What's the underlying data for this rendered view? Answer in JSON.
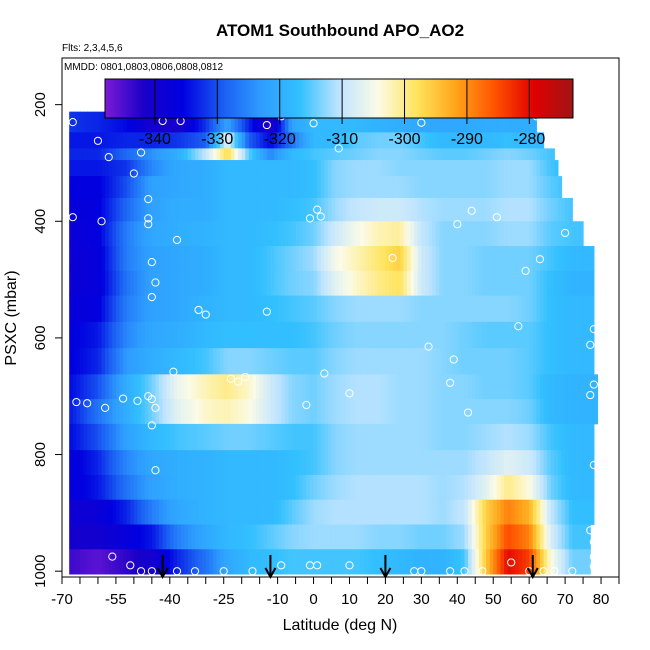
{
  "chart_data": {
    "type": "heatmap",
    "title": "ATOM1 Southbound APO_AO2",
    "subtitle_flights": "Flts: 2,3,4,5,6",
    "subtitle_dates": "MMDD: 0801,0803,0806,0808,0812",
    "xlabel": "Latitude (deg N)",
    "ylabel": "PSXC (mbar)",
    "xlim": [
      -70,
      85
    ],
    "ylim": [
      1010,
      120
    ],
    "y_reversed": true,
    "x_ticks": [
      -70,
      -55,
      -40,
      -25,
      -10,
      0,
      10,
      20,
      30,
      40,
      50,
      60,
      70,
      80
    ],
    "x_minor_ticks": [
      -65,
      -60,
      -50,
      -45,
      -35,
      -30,
      -20,
      -15,
      -5,
      5,
      15,
      25,
      35,
      45,
      55,
      65,
      75,
      85
    ],
    "y_ticks": [
      200,
      400,
      600,
      800,
      1000
    ],
    "colorbar": {
      "ticks": [
        -340,
        -330,
        -320,
        -310,
        -300,
        -290,
        -280
      ],
      "range": [
        -348,
        -273
      ],
      "colors": [
        "#7a1bd6",
        "#1a00c8",
        "#0000e0",
        "#1a5cf2",
        "#2e9cff",
        "#33c0ff",
        "#bfe4ff",
        "#fbfbe6",
        "#ffe45c",
        "#ffa41a",
        "#ff5200",
        "#e00000",
        "#a01515"
      ]
    },
    "grid": false,
    "legend": "colorbar-top",
    "pressure_levels": [
      230,
      265,
      285,
      305,
      340,
      380,
      420,
      465,
      505,
      550,
      595,
      640,
      685,
      725,
      770,
      815,
      855,
      900,
      940,
      985
    ],
    "profile_breaks": {
      "x": [
        -68,
        -60,
        -52,
        -45,
        -38,
        -30,
        -24,
        -18,
        -12,
        -6,
        0,
        6,
        12,
        18,
        24,
        30,
        36,
        42,
        48,
        54,
        60,
        66,
        72
      ],
      "values": [
        [
          -332,
          -333,
          -335,
          -340,
          -341,
          -332,
          -322,
          -333,
          -343,
          -322,
          -318,
          -318,
          -318,
          -319,
          -320,
          -321,
          -321,
          -321,
          -320,
          -320,
          -320,
          -321,
          -321
        ],
        [
          -334,
          -334,
          -333,
          -333,
          -332,
          -329,
          -307,
          -329,
          -335,
          -327,
          -318,
          -318,
          -315,
          -314,
          -314,
          -316,
          -318,
          -318,
          -318,
          -317,
          -318,
          -318,
          -318
        ],
        [
          -333,
          -333,
          -328,
          -324,
          -320,
          -310,
          -297,
          -315,
          -325,
          -318,
          -316,
          -315,
          -314,
          -313,
          -313,
          -314,
          -315,
          -315,
          -314,
          -313,
          -314,
          -316,
          -318
        ],
        [
          -334,
          -334,
          -332,
          -325,
          -321,
          -320,
          -318,
          -318,
          -318,
          -318,
          -317,
          -313,
          -312,
          -312,
          -313,
          -313,
          -313,
          -313,
          -313,
          -312,
          -312,
          -316,
          -318
        ],
        [
          -336,
          -336,
          -330,
          -322,
          -321,
          -320,
          -318,
          -318,
          -318,
          -318,
          -317,
          -313,
          -312,
          -312,
          -312,
          -313,
          -313,
          -313,
          -313,
          -312,
          -312,
          -315,
          -317
        ],
        [
          -337,
          -336,
          -328,
          -322,
          -320,
          -320,
          -318,
          -318,
          -318,
          -317,
          -316,
          -312,
          -310,
          -309,
          -309,
          -311,
          -312,
          -312,
          -312,
          -311,
          -311,
          -314,
          -316
        ],
        [
          -338,
          -336,
          -326,
          -321,
          -320,
          -319,
          -318,
          -318,
          -317,
          -316,
          -314,
          -309,
          -305,
          -302,
          -301,
          -310,
          -313,
          -313,
          -313,
          -312,
          -312,
          -315,
          -316
        ],
        [
          -338,
          -337,
          -326,
          -322,
          -321,
          -320,
          -318,
          -318,
          -316,
          -314,
          -312,
          -305,
          -302,
          -299,
          -296,
          -309,
          -313,
          -313,
          -314,
          -314,
          -314,
          -316,
          -318
        ],
        [
          -338,
          -337,
          -327,
          -322,
          -321,
          -320,
          -318,
          -318,
          -316,
          -314,
          -313,
          -307,
          -303,
          -300,
          -298,
          -309,
          -313,
          -313,
          -314,
          -314,
          -314,
          -317,
          -319
        ],
        [
          -337,
          -336,
          -326,
          -322,
          -321,
          -319,
          -318,
          -318,
          -317,
          -316,
          -315,
          -313,
          -312,
          -312,
          -312,
          -313,
          -313,
          -313,
          -313,
          -313,
          -314,
          -317,
          -318
        ],
        [
          -336,
          -334,
          -325,
          -321,
          -320,
          -318,
          -317,
          -317,
          -317,
          -317,
          -316,
          -314,
          -313,
          -313,
          -313,
          -313,
          -313,
          -314,
          -315,
          -315,
          -315,
          -317,
          -318
        ],
        [
          -336,
          -333,
          -323,
          -320,
          -318,
          -316,
          -313,
          -313,
          -314,
          -315,
          -315,
          -313,
          -312,
          -312,
          -312,
          -312,
          -313,
          -314,
          -314,
          -314,
          -315,
          -317,
          -318
        ],
        [
          -335,
          -330,
          -320,
          -314,
          -306,
          -302,
          -300,
          -303,
          -309,
          -313,
          -314,
          -312,
          -311,
          -311,
          -312,
          -312,
          -313,
          -313,
          -314,
          -314,
          -315,
          -318,
          -319
        ],
        [
          -334,
          -327,
          -320,
          -314,
          -307,
          -303,
          -302,
          -304,
          -309,
          -313,
          -314,
          -312,
          -311,
          -311,
          -312,
          -312,
          -313,
          -313,
          -313,
          -313,
          -314,
          -318,
          -319
        ],
        [
          -335,
          -330,
          -322,
          -318,
          -316,
          -315,
          -314,
          -314,
          -315,
          -316,
          -316,
          -313,
          -312,
          -312,
          -312,
          -312,
          -313,
          -313,
          -312,
          -311,
          -312,
          -316,
          -318
        ],
        [
          -337,
          -333,
          -325,
          -321,
          -320,
          -319,
          -318,
          -318,
          -318,
          -317,
          -316,
          -313,
          -312,
          -312,
          -312,
          -312,
          -312,
          -312,
          -310,
          -307,
          -309,
          -315,
          -318
        ],
        [
          -337,
          -334,
          -327,
          -322,
          -320,
          -319,
          -318,
          -318,
          -318,
          -317,
          -314,
          -312,
          -311,
          -311,
          -311,
          -311,
          -312,
          -311,
          -307,
          -300,
          -304,
          -314,
          -318
        ],
        [
          -339,
          -338,
          -333,
          -326,
          -321,
          -319,
          -318,
          -318,
          -318,
          -315,
          -312,
          -311,
          -311,
          -311,
          -311,
          -311,
          -312,
          -310,
          -296,
          -289,
          -293,
          -310,
          -317
        ],
        [
          -340,
          -340,
          -337,
          -334,
          -326,
          -321,
          -318,
          -317,
          -315,
          -313,
          -312,
          -312,
          -312,
          -313,
          -313,
          -314,
          -314,
          -312,
          -296,
          -285,
          -289,
          -308,
          -316
        ],
        [
          -344,
          -346,
          -343,
          -340,
          -333,
          -327,
          -321,
          -318,
          -317,
          -316,
          -316,
          -316,
          -316,
          -317,
          -318,
          -319,
          -319,
          -316,
          -295,
          -280,
          -284,
          -304,
          -314
        ]
      ]
    },
    "row_extents": [
      [
        -68,
        62
      ],
      [
        -68,
        64
      ],
      [
        -68,
        67
      ],
      [
        -68,
        68
      ],
      [
        -68,
        69
      ],
      [
        -68,
        72
      ],
      [
        -68,
        75
      ],
      [
        -68,
        78
      ],
      [
        -68,
        78
      ],
      [
        -68,
        78
      ],
      [
        -68,
        78
      ],
      [
        -68,
        78
      ],
      [
        -68,
        79
      ],
      [
        -68,
        79
      ],
      [
        -68,
        78
      ],
      [
        -68,
        78
      ],
      [
        -68,
        78
      ],
      [
        -68,
        78
      ],
      [
        -68,
        77
      ],
      [
        -68,
        77
      ]
    ],
    "sample_points": [
      [
        -67,
        230
      ],
      [
        -60,
        262
      ],
      [
        -57,
        290
      ],
      [
        -50,
        318
      ],
      [
        -48,
        282
      ],
      [
        -42,
        228
      ],
      [
        -37,
        228
      ],
      [
        -13,
        235
      ],
      [
        -9,
        220
      ],
      [
        0,
        232
      ],
      [
        7,
        275
      ],
      [
        30,
        231
      ],
      [
        62,
        220
      ],
      [
        -67,
        393
      ],
      [
        -59,
        400
      ],
      [
        -46,
        362
      ],
      [
        -46,
        395
      ],
      [
        -46,
        405
      ],
      [
        -38,
        432
      ],
      [
        -1,
        395
      ],
      [
        1,
        380
      ],
      [
        2,
        392
      ],
      [
        40,
        405
      ],
      [
        44,
        382
      ],
      [
        51,
        393
      ],
      [
        70,
        420
      ],
      [
        77,
        405
      ],
      [
        -45,
        470
      ],
      [
        -44,
        505
      ],
      [
        -45,
        530
      ],
      [
        -32,
        552
      ],
      [
        -30,
        560
      ],
      [
        -13,
        555
      ],
      [
        22,
        463
      ],
      [
        59,
        485
      ],
      [
        63,
        465
      ],
      [
        32,
        615
      ],
      [
        39,
        637
      ],
      [
        57,
        580
      ],
      [
        77,
        612
      ],
      [
        78,
        585
      ],
      [
        -66,
        710
      ],
      [
        -63,
        712
      ],
      [
        -58,
        720
      ],
      [
        -53,
        704
      ],
      [
        -49,
        708
      ],
      [
        -46,
        700
      ],
      [
        -45,
        705
      ],
      [
        -44,
        720
      ],
      [
        -45,
        750
      ],
      [
        -39,
        658
      ],
      [
        -23,
        670
      ],
      [
        -21,
        675
      ],
      [
        -19,
        667
      ],
      [
        -2,
        715
      ],
      [
        3,
        661
      ],
      [
        10,
        695
      ],
      [
        38,
        677
      ],
      [
        43,
        728
      ],
      [
        77,
        698
      ],
      [
        78,
        680
      ],
      [
        -44,
        827
      ],
      [
        -45,
        1000
      ],
      [
        -56,
        975
      ],
      [
        -51,
        990
      ],
      [
        -48,
        1000
      ],
      [
        -38,
        1000
      ],
      [
        -33,
        1000
      ],
      [
        -25,
        1000
      ],
      [
        -17,
        1000
      ],
      [
        -9,
        990
      ],
      [
        -1,
        990
      ],
      [
        1,
        990
      ],
      [
        10,
        990
      ],
      [
        28,
        1000
      ],
      [
        30,
        1000
      ],
      [
        38,
        1000
      ],
      [
        42,
        1000
      ],
      [
        47,
        1000
      ],
      [
        55,
        985
      ],
      [
        60,
        1000
      ],
      [
        64,
        1000
      ],
      [
        67,
        1000
      ],
      [
        72,
        1000
      ],
      [
        78,
        950
      ],
      [
        78,
        975
      ],
      [
        78,
        992
      ],
      [
        77,
        930
      ],
      [
        78,
        818
      ]
    ],
    "arrows_lat": [
      -42,
      -12,
      20,
      61
    ]
  }
}
